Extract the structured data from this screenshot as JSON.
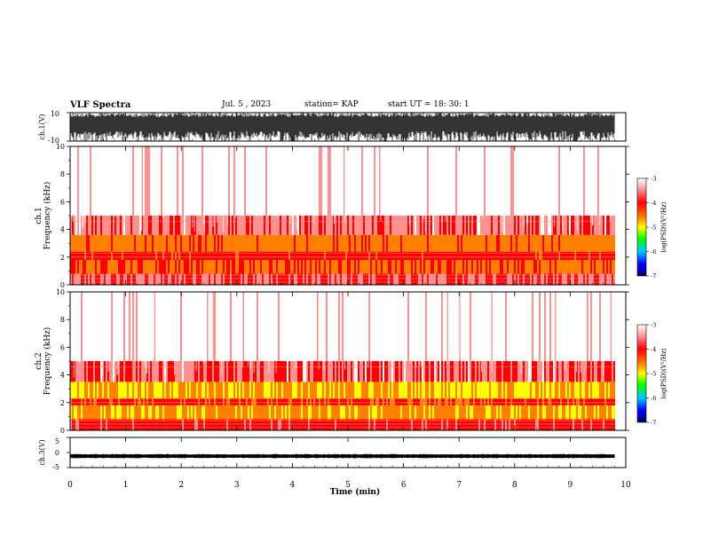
{
  "header": {
    "title": "VLF Spectra",
    "date": "Jul. 5 , 2023",
    "station": "station= KAP",
    "start": "start UT = 18: 30: 1"
  },
  "colors": {
    "spectrogram_scale": [
      "#000080",
      "#0000ff",
      "#00c8ff",
      "#00ff00",
      "#ffff00",
      "#ff8000",
      "#ff0000",
      "#ffb0b0",
      "#ffffff"
    ],
    "trace": "#000000"
  },
  "chart_data": [
    {
      "type": "line",
      "id": "ch1-waveform",
      "ylabel": "ch.1(V)",
      "ylim": [
        -10,
        10
      ],
      "yticks": [
        "10",
        "-10"
      ],
      "xlim": [
        0,
        10
      ],
      "description_values": {
        "trace_min": -10,
        "trace_max": 10,
        "trace_span_min": 9.8
      }
    },
    {
      "type": "heatmap",
      "id": "ch1-spectrogram",
      "ylabel": "ch.1",
      "ylabel2": "Frequency (kHz)",
      "ylim": [
        0,
        10
      ],
      "yticks": [
        "0",
        "2",
        "4",
        "6",
        "8",
        "10"
      ],
      "xlim": [
        0,
        10
      ],
      "time_span_min": 9.8,
      "bands": [
        {
          "from_khz": 0.0,
          "to_khz": 0.8,
          "level": -4.0
        },
        {
          "from_khz": 0.8,
          "to_khz": 1.8,
          "level": -4.6
        },
        {
          "from_khz": 1.8,
          "to_khz": 2.4,
          "level": -4.3
        },
        {
          "from_khz": 2.4,
          "to_khz": 3.6,
          "level": -4.7
        },
        {
          "from_khz": 3.6,
          "to_khz": 5.0,
          "level": -3.9
        },
        {
          "from_khz": 5.0,
          "to_khz": 10.0,
          "level": -3.3
        }
      ],
      "colorbar": {
        "label": "log(PSD)(V²/Hz)",
        "ticks": [
          "-3",
          "-4",
          "-5",
          "-6",
          "-7"
        ],
        "range": [
          -7,
          -3
        ]
      }
    },
    {
      "type": "heatmap",
      "id": "ch2-spectrogram",
      "ylabel": "ch.2",
      "ylabel2": "Frequency (kHz)",
      "ylim": [
        0,
        10
      ],
      "yticks": [
        "0",
        "2",
        "4",
        "6",
        "8",
        "10"
      ],
      "xlim": [
        0,
        10
      ],
      "time_span_min": 9.8,
      "bands": [
        {
          "from_khz": 0.0,
          "to_khz": 0.8,
          "level": -4.2
        },
        {
          "from_khz": 0.8,
          "to_khz": 1.8,
          "level": -4.9
        },
        {
          "from_khz": 1.8,
          "to_khz": 2.3,
          "level": -4.4
        },
        {
          "from_khz": 2.3,
          "to_khz": 3.5,
          "level": -5.0
        },
        {
          "from_khz": 3.5,
          "to_khz": 5.0,
          "level": -4.0
        },
        {
          "from_khz": 5.0,
          "to_khz": 10.0,
          "level": -3.3
        }
      ],
      "colorbar": {
        "label": "log(PSD)(V²/Hz)",
        "ticks": [
          "-3",
          "-4",
          "-5",
          "-6",
          "-7"
        ],
        "range": [
          -7,
          -3
        ]
      }
    },
    {
      "type": "line",
      "id": "ch3-waveform",
      "ylabel": "ch.3(V)",
      "ylim": [
        -5,
        5
      ],
      "yticks": [
        "5",
        "0",
        "-5"
      ],
      "xlim": [
        0,
        10
      ],
      "trace_center": -1.2,
      "trace_half_width": 0.6
    }
  ],
  "xaxis": {
    "label": "Time (min)",
    "ticks": [
      "0",
      "1",
      "2",
      "3",
      "4",
      "5",
      "6",
      "7",
      "8",
      "9",
      "10"
    ]
  }
}
